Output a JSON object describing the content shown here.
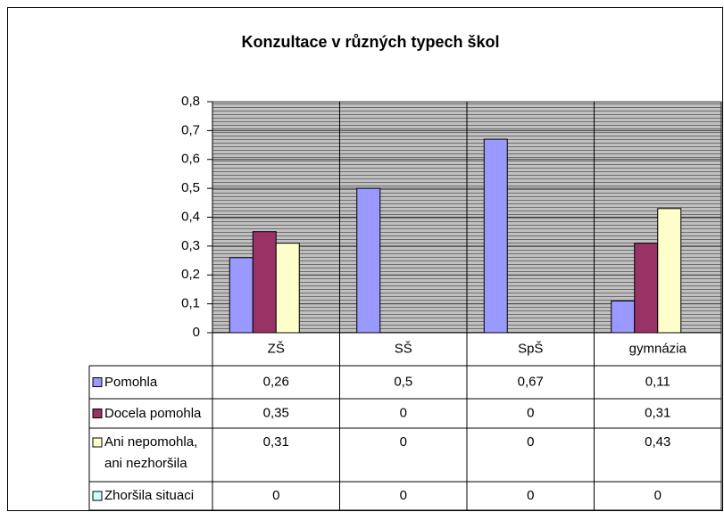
{
  "chart_data": {
    "type": "bar",
    "title": "Konzultace v různých typech škol",
    "categories": [
      "ZŠ",
      "SŠ",
      "SpŠ",
      "gymnázia"
    ],
    "series": [
      {
        "name": "Pomohla",
        "color": "#9999ff",
        "values": [
          0.26,
          0.5,
          0.67,
          0.11
        ],
        "value_labels": [
          "0,26",
          "0,5",
          "0,67",
          "0,11"
        ]
      },
      {
        "name": "Docela pomohla",
        "color": "#993366",
        "values": [
          0.35,
          0,
          0,
          0.31
        ],
        "value_labels": [
          "0,35",
          "0",
          "0",
          "0,31"
        ]
      },
      {
        "name": "Ani nepomohla, ani nezhoršila",
        "color": "#ffffcc",
        "values": [
          0.31,
          0,
          0,
          0.43
        ],
        "value_labels": [
          "0,31",
          "0",
          "0",
          "0,43"
        ]
      },
      {
        "name": "Zhoršila situaci",
        "color": "#ccffff",
        "values": [
          0,
          0,
          0,
          0
        ],
        "value_labels": [
          "0",
          "0",
          "0",
          "0"
        ]
      }
    ],
    "ylim": [
      0,
      0.8
    ],
    "yticks": [
      0,
      {
        "value": 0.1,
        "label": "0,1"
      },
      {
        "value": 0.2,
        "label": "0,2"
      },
      {
        "value": 0.3,
        "label": "0,3"
      },
      {
        "value": 0.4,
        "label": "0,4"
      },
      {
        "value": 0.5,
        "label": "0,5"
      },
      {
        "value": 0.6,
        "label": "0,6"
      },
      {
        "value": 0.7,
        "label": "0,7"
      },
      {
        "value": 0.8,
        "label": "0,8"
      }
    ],
    "grid": true
  }
}
